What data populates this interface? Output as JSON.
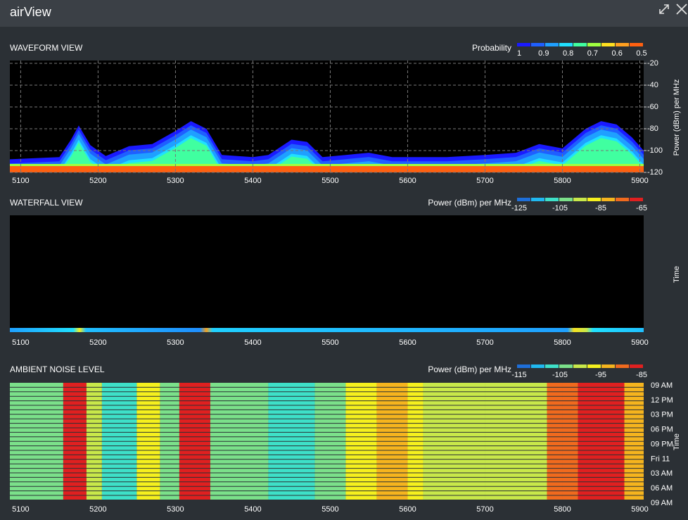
{
  "header": {
    "title": "airView"
  },
  "waveform": {
    "title": "WAVEFORM VIEW",
    "legend_title": "Probability",
    "legend_ticks": [
      1,
      0.9,
      0.8,
      0.7,
      0.6,
      0.5
    ],
    "legend_colors": [
      "#1a1aff",
      "#1f5fff",
      "#1fa0ff",
      "#20e0ff",
      "#40ffa0",
      "#a0ff40",
      "#ffe020",
      "#ffa020",
      "#ff6010"
    ],
    "y_label": "Power (dBm) per MHz",
    "xlim": [
      5086,
      5905
    ],
    "ylim": [
      -120,
      -17.4
    ],
    "xticks": [
      5100,
      5200,
      5300,
      5400,
      5500,
      5600,
      5700,
      5800,
      5900
    ],
    "yticks": [
      -20,
      -40,
      -60,
      -80,
      -100,
      -120
    ],
    "envelope": {
      "x": [
        5086,
        5150,
        5165,
        5175,
        5190,
        5210,
        5240,
        5270,
        5300,
        5320,
        5340,
        5360,
        5400,
        5420,
        5450,
        5470,
        5490,
        5520,
        5550,
        5580,
        5650,
        5700,
        5740,
        5770,
        5800,
        5830,
        5850,
        5870,
        5890,
        5905
      ],
      "values": [
        -108,
        -106,
        -90,
        -77,
        -95,
        -105,
        -96,
        -94,
        -82,
        -73,
        -80,
        -104,
        -106,
        -104,
        -90,
        -92,
        -106,
        -104,
        -102,
        -106,
        -106,
        -104,
        -102,
        -94,
        -98,
        -80,
        -73,
        -76,
        -88,
        -100
      ]
    }
  },
  "waterfall": {
    "title": "WATERFALL VIEW",
    "legend_title": "Power (dBm) per MHz",
    "legend_ticks": [
      -125,
      -105,
      -85,
      -65
    ],
    "y_label": "Time",
    "xticks": [
      5100,
      5200,
      5300,
      5400,
      5500,
      5600,
      5700,
      5800,
      5900
    ]
  },
  "ambient": {
    "title": "AMBIENT NOISE LEVEL",
    "legend_title": "Power (dBm) per MHz",
    "legend_ticks": [
      -115,
      -105,
      -95,
      -85
    ],
    "clim": [
      -115,
      -85
    ],
    "colorscale": [
      "#1e6fd9",
      "#20b8f0",
      "#3ee0c8",
      "#7be08a",
      "#c8e84a",
      "#f5f01e",
      "#f5b41e",
      "#f06a1e",
      "#e02020"
    ],
    "y_label": "Time",
    "time_labels": [
      "09 AM",
      "12 PM",
      "03 PM",
      "06 PM",
      "09 PM",
      "Fri 11",
      "03 AM",
      "06 AM",
      "09 AM"
    ],
    "xticks": [
      5100,
      5200,
      5300,
      5400,
      5500,
      5600,
      5700,
      5800,
      5900
    ],
    "bands": {
      "from": [
        5086,
        5155,
        5185,
        5205,
        5250,
        5280,
        5305,
        5345,
        5420,
        5480,
        5520,
        5560,
        5600,
        5620,
        5700,
        5780,
        5800,
        5820,
        5880
      ],
      "to": [
        5155,
        5185,
        5205,
        5250,
        5280,
        5305,
        5345,
        5420,
        5480,
        5520,
        5560,
        5600,
        5620,
        5700,
        5780,
        5800,
        5820,
        5880,
        5905
      ],
      "values": [
        -103,
        -86,
        -101,
        -108,
        -96,
        -104,
        -86,
        -104,
        -107,
        -104,
        -96,
        -94,
        -97,
        -100,
        -101,
        -90,
        -88,
        -86,
        -92
      ]
    }
  }
}
